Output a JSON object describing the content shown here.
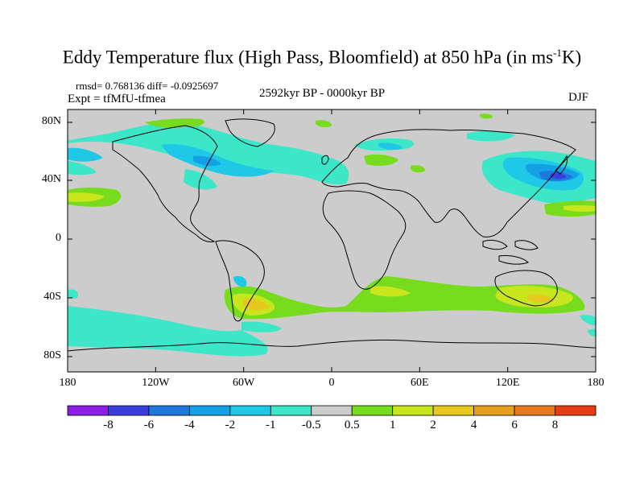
{
  "title": {
    "main": "Eddy Temperature flux (High Pass, Bloomfield) at 850 hPa (in ms",
    "superscript": "-1",
    "unit_end": "K)"
  },
  "stats": "rmsd= 0.768136 diff= -0.0925697",
  "experiment": "Expt = tfMfU-tfmea",
  "period": "2592kyr BP - 0000kyr BP",
  "season": "DJF",
  "map": {
    "background_color": "#cccccc",
    "lat_ticks": [
      "80N",
      "40N",
      "0",
      "40S",
      "80S"
    ],
    "lon_ticks": [
      "180",
      "120W",
      "60W",
      "0",
      "60E",
      "120E",
      "180"
    ]
  },
  "colorbar": {
    "labels": [
      "-8",
      "-6",
      "-4",
      "-2",
      "-1",
      "-0.5",
      "0.5",
      "1",
      "2",
      "4",
      "6",
      "8"
    ],
    "colors": [
      "#8c1ee6",
      "#3c3cdc",
      "#1e78dc",
      "#14a0e6",
      "#1ec8e6",
      "#3ce6c8",
      "#cccccc",
      "#78dc1e",
      "#c8e61e",
      "#e6c81e",
      "#e6a01e",
      "#e6781e",
      "#e63c14"
    ]
  }
}
